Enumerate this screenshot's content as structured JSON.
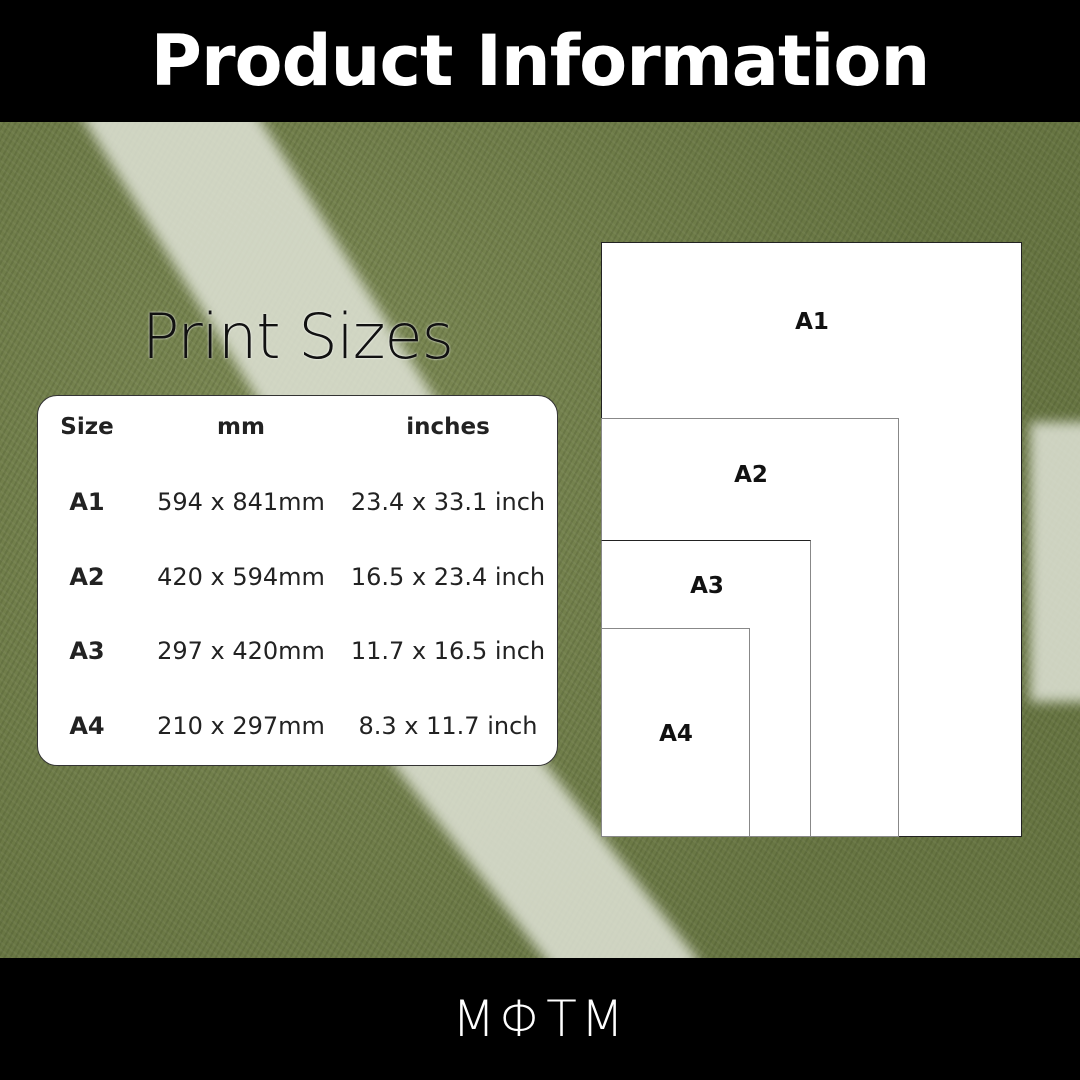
{
  "header": {
    "title": "Product Information"
  },
  "section": {
    "title": "Print Sizes"
  },
  "table": {
    "columns": [
      "Size",
      "mm",
      "inches"
    ],
    "rows": [
      {
        "size": "A1",
        "mm": "594 x 841mm",
        "inches": "23.4 x 33.1 inch"
      },
      {
        "size": "A2",
        "mm": "420 x 594mm",
        "inches": "16.5 x 23.4 inch"
      },
      {
        "size": "A3",
        "mm": "297 x 420mm",
        "inches": "11.7 x 16.5 inch"
      },
      {
        "size": "A4",
        "mm": "210 x 297mm",
        "inches": "8.3 x 11.7 inch"
      }
    ]
  },
  "diagram": {
    "labels": [
      "A1",
      "A2",
      "A3",
      "A4"
    ]
  },
  "footer": {
    "logo": "MΦTM"
  },
  "colors": {
    "bars": "#000000",
    "grass": "#6f7d48"
  }
}
